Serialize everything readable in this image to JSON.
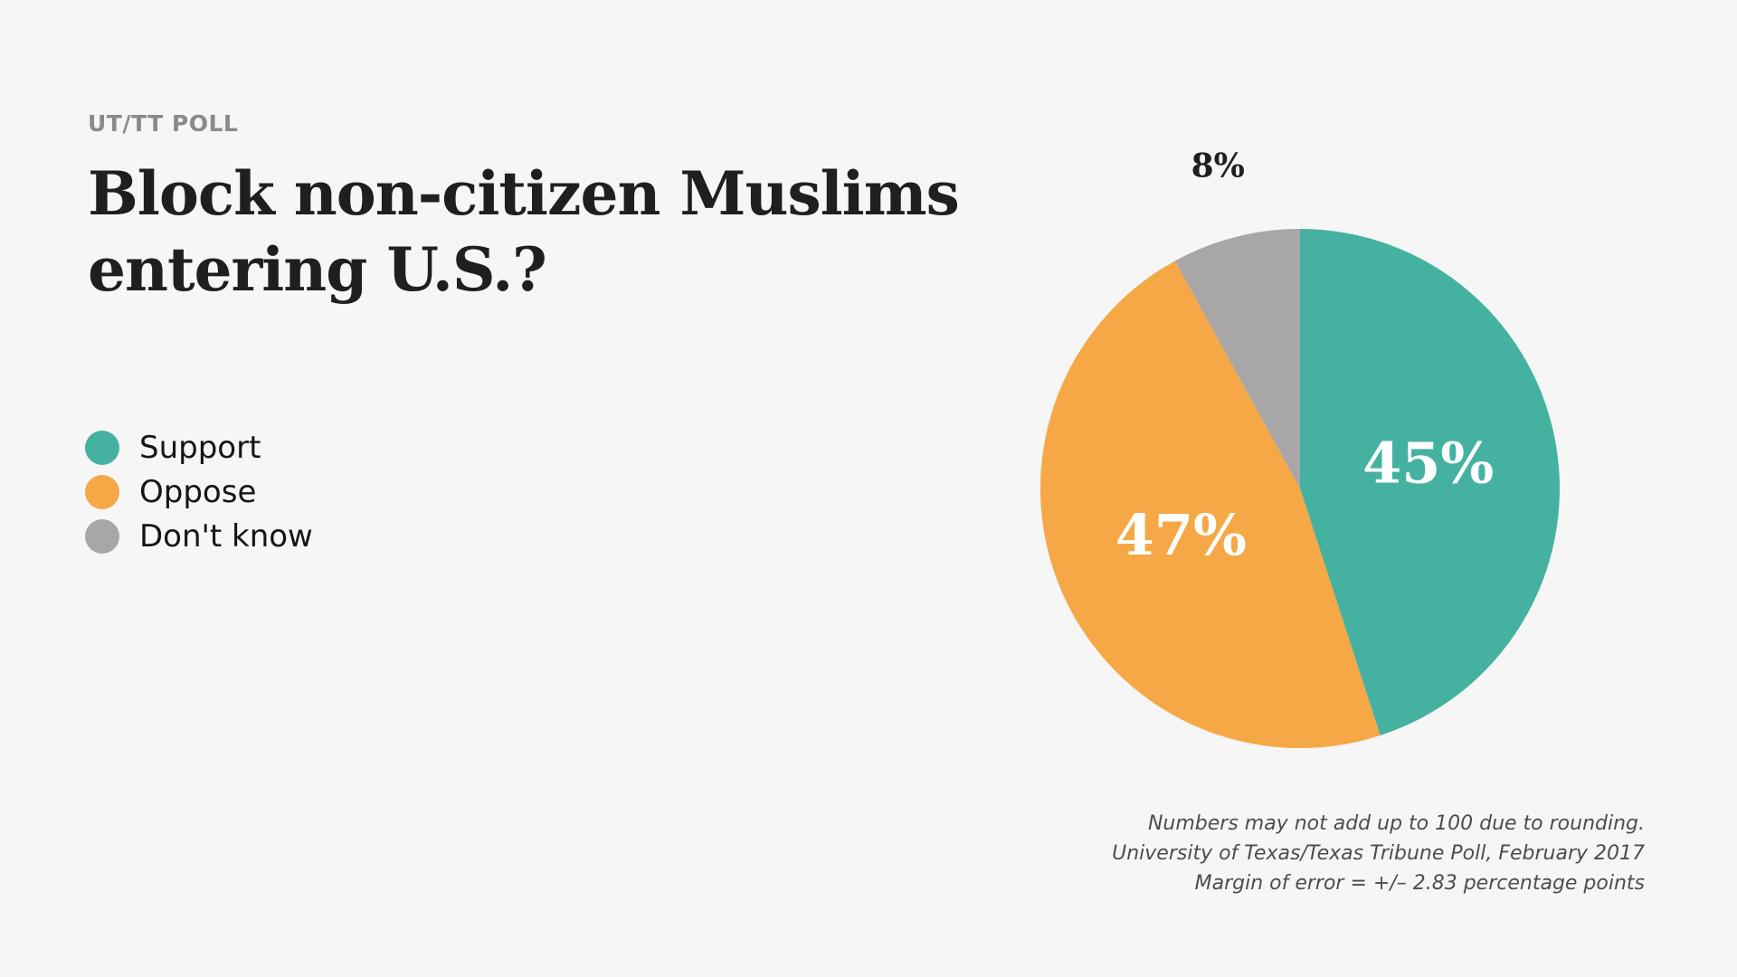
{
  "header": {
    "kicker": "UT/TT POLL",
    "title": "Block non-citizen Muslims entering U.S.?"
  },
  "chart_data": {
    "type": "pie",
    "title": "Block non-citizen Muslims entering U.S.?",
    "categories": [
      "Support",
      "Oppose",
      "Don't know"
    ],
    "values": [
      45,
      47,
      8
    ],
    "labels": [
      "45%",
      "47%",
      "8%"
    ],
    "colors": [
      "#45b2a1",
      "#f5a845",
      "#a8a6a7"
    ],
    "legend_position": "left",
    "start_angle": "top (12 o'clock)",
    "direction": "clockwise"
  },
  "legend": {
    "items": [
      {
        "label": "Support",
        "color": "#45b2a1"
      },
      {
        "label": "Oppose",
        "color": "#f5a845"
      },
      {
        "label": "Don't know",
        "color": "#a8a6a7"
      }
    ]
  },
  "footnotes": {
    "line1": "Numbers may not add up to 100 due to rounding.",
    "line2": "University of Texas/Texas Tribune Poll, February 2017",
    "line3": "Margin of error = +/– 2.83 percentage points"
  }
}
